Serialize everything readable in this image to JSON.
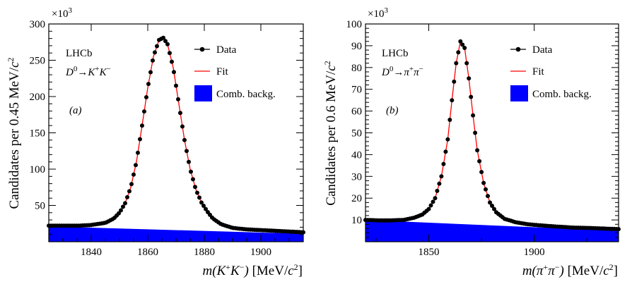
{
  "chart_data": [
    {
      "type": "scatter",
      "panel_label": "(a)",
      "experiment": "LHCb",
      "decay": "D⁰→K⁺K⁻",
      "decay_parts": {
        "d": "D",
        "d_sup": "0",
        "arrow": "→",
        "p1": "K",
        "p1_sup": "+",
        "p2": "K",
        "p2_sup": "−"
      },
      "xlabel": "m(K⁺K⁻) [MeV/c²]",
      "xlabel_parts": {
        "m": "m(",
        "p1": "K",
        "p1_sup": "+",
        "p2": "K",
        "p2_sup": "−",
        "close": ")",
        "unit": " [MeV/",
        "c": "c",
        "c_sup": "2",
        "end": "]"
      },
      "ylabel": "Candidates per 0.45 MeV/c²",
      "ylabel_parts": {
        "main": "Candidates per 0.45 MeV/",
        "c": "c",
        "c_sup": "2"
      },
      "y_multiplier": "×10",
      "y_multiplier_exp": "3",
      "xlim": [
        1825,
        1915
      ],
      "ylim": [
        0,
        300
      ],
      "x_ticks": [
        1840,
        1860,
        1880,
        1900
      ],
      "y_ticks": [
        50,
        100,
        150,
        200,
        250,
        300
      ],
      "legend": {
        "position": "top-right",
        "items": [
          "Data",
          "Fit",
          "Comb. backg."
        ]
      },
      "series": [
        {
          "name": "Data",
          "kind": "points",
          "x": [
            1825,
            1830,
            1835,
            1840,
            1845,
            1848,
            1850,
            1852,
            1854,
            1856,
            1858,
            1860,
            1862,
            1864,
            1865.5,
            1867,
            1869,
            1871,
            1873,
            1875,
            1877,
            1879,
            1881,
            1883,
            1886,
            1890,
            1895,
            1900,
            1905,
            1910,
            1915
          ],
          "y": [
            22,
            22,
            22,
            23,
            26,
            32,
            40,
            53,
            75,
            110,
            160,
            212,
            255,
            278,
            281,
            272,
            240,
            190,
            140,
            100,
            72,
            54,
            42,
            32,
            24,
            19,
            17,
            16,
            15,
            14,
            13
          ]
        },
        {
          "name": "Fit",
          "kind": "line",
          "color": "#ff0000"
        },
        {
          "name": "Comb. backg.",
          "kind": "area",
          "color": "#0000ff",
          "x": [
            1825,
            1915
          ],
          "y": [
            21,
            11
          ]
        }
      ]
    },
    {
      "type": "scatter",
      "panel_label": "(b)",
      "experiment": "LHCb",
      "decay": "D⁰→π⁺π⁻",
      "decay_parts": {
        "d": "D",
        "d_sup": "0",
        "arrow": "→",
        "p1": "π",
        "p1_sup": "+",
        "p2": "π",
        "p2_sup": "−"
      },
      "xlabel": "m(π⁺π⁻) [MeV/c²]",
      "xlabel_parts": {
        "m": "m(",
        "p1": "π",
        "p1_sup": "+",
        "p2": "π",
        "p2_sup": "−",
        "close": ")",
        "unit": " [MeV/",
        "c": "c",
        "c_sup": "2",
        "end": "]"
      },
      "ylabel": "Candidates per 0.6 MeV/c²",
      "ylabel_parts": {
        "main": "Candidates per 0.6 MeV/",
        "c": "c",
        "c_sup": "2"
      },
      "y_multiplier": "×10",
      "y_multiplier_exp": "3",
      "xlim": [
        1820,
        1940
      ],
      "ylim": [
        0,
        100
      ],
      "x_ticks": [
        1850,
        1900
      ],
      "y_ticks": [
        10,
        20,
        30,
        40,
        50,
        60,
        70,
        80,
        90,
        100
      ],
      "legend": {
        "position": "top-right",
        "items": [
          "Data",
          "Fit",
          "Comb. backg."
        ]
      },
      "series": [
        {
          "name": "Data",
          "kind": "points",
          "x": [
            1820,
            1826,
            1832,
            1838,
            1843,
            1847,
            1850,
            1853,
            1856,
            1859,
            1861,
            1863,
            1865,
            1867,
            1869,
            1871,
            1873,
            1876,
            1879,
            1882,
            1886,
            1891,
            1897,
            1903,
            1910,
            1918,
            1926,
            1934,
            1940
          ],
          "y": [
            10,
            9.8,
            9.8,
            10,
            11,
            12.5,
            15,
            20,
            30,
            47,
            65,
            82,
            92,
            89,
            75,
            58,
            42,
            27,
            18,
            13.5,
            10.5,
            9,
            8,
            7.5,
            7,
            6.5,
            6.3,
            6,
            5.8
          ]
        },
        {
          "name": "Fit",
          "kind": "line",
          "color": "#ff0000"
        },
        {
          "name": "Comb. backg.",
          "kind": "area",
          "color": "#0000ff",
          "x": [
            1820,
            1940
          ],
          "y": [
            10,
            5
          ]
        }
      ]
    }
  ]
}
